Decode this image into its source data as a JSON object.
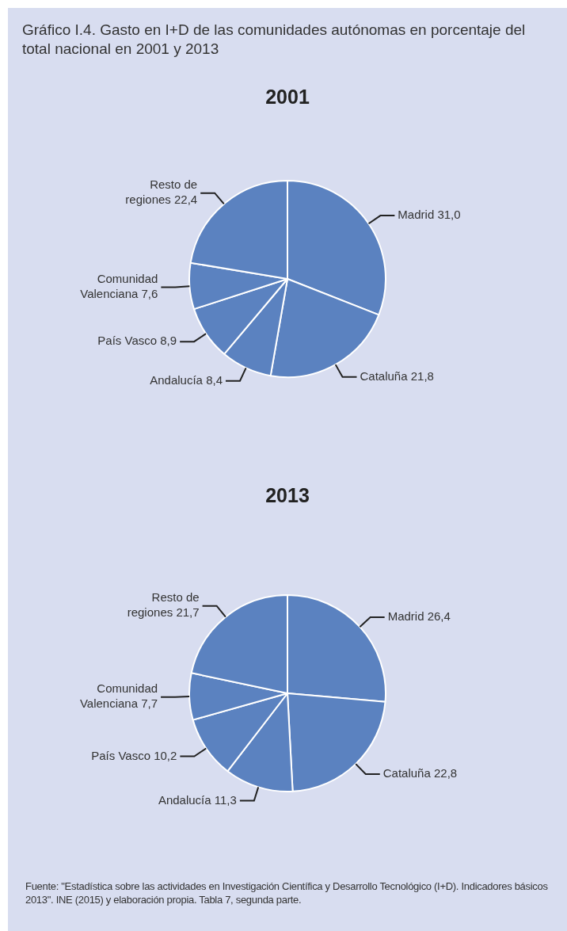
{
  "chart_data": [
    {
      "type": "pie",
      "title": "2001",
      "annotations": [
        "Gráfico I.4. Gasto en I+D de las comunidades autónomas en porcentaje del total nacional en 2001 y 2013"
      ],
      "categories": [
        "Madrid",
        "Cataluña",
        "Andalucía",
        "País Vasco",
        "Comunidad Valenciana",
        "Resto de regiones"
      ],
      "values": [
        31.0,
        21.8,
        8.4,
        8.9,
        7.6,
        22.4
      ],
      "value_labels": [
        "31,0",
        "21,8",
        "8,4",
        "8,9",
        "7,6",
        "22,4"
      ],
      "colors": [
        "#5b82c0",
        "#5b82c0",
        "#5b82c0",
        "#5b82c0",
        "#5b82c0",
        "#5b82c0"
      ]
    },
    {
      "type": "pie",
      "title": "2013",
      "annotations": [
        "Fuente: \"Estadística sobre las actividades en Investigación Científica y Desarrollo Tecnológico (I+D). Indicadores básicos 2013\". INE (2015) y elaboración propia. Tabla 7, segunda parte."
      ],
      "categories": [
        "Madrid",
        "Cataluña",
        "Andalucía",
        "País Vasco",
        "Comunidad Valenciana",
        "Resto de regiones"
      ],
      "values": [
        26.4,
        22.8,
        11.3,
        10.2,
        7.7,
        21.7
      ],
      "value_labels": [
        "26,4",
        "22,8",
        "11,3",
        "10,2",
        "7,7",
        "21,7"
      ],
      "colors": [
        "#5b82c0",
        "#5b82c0",
        "#5b82c0",
        "#5b82c0",
        "#5b82c0",
        "#5b82c0"
      ]
    }
  ]
}
